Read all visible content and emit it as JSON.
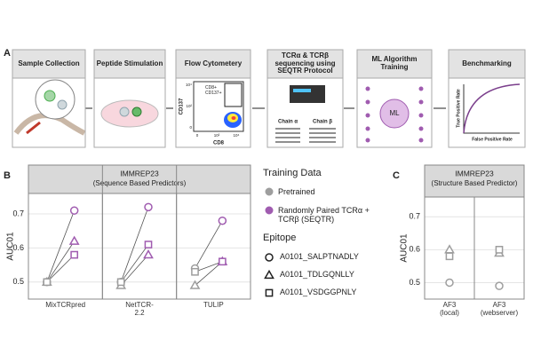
{
  "workflow": {
    "label": "A",
    "steps": [
      "Sample Collection",
      "Peptide Stimulation",
      "Flow Cytometery",
      "TCRα & TCRβ sequencing using SEQTR Protocol",
      "ML Algorithm Training",
      "Benchmarking"
    ],
    "flow_gate": "CD8+ CD137+",
    "flow_ylabel": "CD137",
    "flow_xlabel": "CD8",
    "flow_yticks": [
      "10⁴",
      "10²",
      "0"
    ],
    "flow_xticks": [
      "0",
      "10²",
      "10⁴"
    ],
    "chains": [
      "Chain α",
      "Chain β"
    ],
    "ml": "ML",
    "roc_ylabel": "True Positive Rate",
    "roc_xlabel": "False Positive Rate"
  },
  "legend": {
    "training_title": "Training Data",
    "epitope_title": "Epitope"
  },
  "chart_data": [
    {
      "type": "dot",
      "label": "B",
      "title": "IMMREP23",
      "subtitle": "(Sequence Based Predictors)",
      "ylabel": "AUC01",
      "categories": [
        "MixTCRpred",
        "NetTCR-2.2",
        "TULIP"
      ],
      "ylim": [
        0.45,
        0.76
      ],
      "yticks": [
        0.5,
        0.6,
        0.7
      ],
      "grid": true,
      "groups": [
        {
          "name": "Pretrained",
          "color": "#9e9e9e"
        },
        {
          "name": "Randomly Paired TCRα + TCRβ (SEQTR)",
          "color": "#a05cb0"
        }
      ],
      "series": [
        {
          "name": "A0101_SALPTNADLY",
          "shape": "circle",
          "values": [
            [
              0.5,
              0.71
            ],
            [
              0.5,
              0.72
            ],
            [
              0.54,
              0.68
            ]
          ]
        },
        {
          "name": "A0101_TDLGQNLLY",
          "shape": "triangle",
          "values": [
            [
              0.5,
              0.62
            ],
            [
              0.49,
              0.58
            ],
            [
              0.49,
              0.56
            ]
          ]
        },
        {
          "name": "A0101_VSDGGPNLY",
          "shape": "square",
          "values": [
            [
              0.5,
              0.58
            ],
            [
              0.5,
              0.61
            ],
            [
              0.53,
              0.56
            ]
          ]
        }
      ]
    },
    {
      "type": "dot",
      "label": "C",
      "title": "IMMREP23",
      "subtitle": "(Structure Based Predictor)",
      "ylabel": "AUC01",
      "categories": [
        "AF3 (local)",
        "AF3 (webserver)"
      ],
      "ylim": [
        0.45,
        0.76
      ],
      "yticks": [
        0.5,
        0.6,
        0.7
      ],
      "grid": true,
      "color": "#9e9e9e",
      "series": [
        {
          "shape": "circle",
          "values": [
            [
              0.5
            ],
            [
              0.49
            ]
          ]
        },
        {
          "shape": "triangle",
          "values": [
            [
              0.6
            ],
            [
              0.59
            ]
          ]
        },
        {
          "shape": "square",
          "values": [
            [
              0.58
            ],
            [
              0.6
            ]
          ]
        }
      ]
    }
  ]
}
